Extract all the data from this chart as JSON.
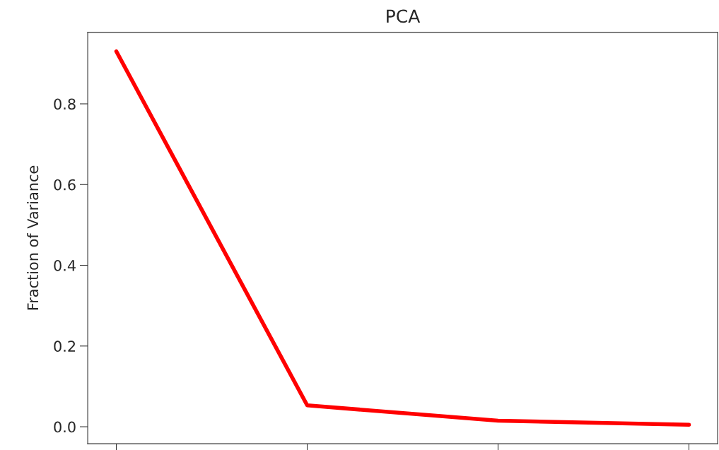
{
  "chart_data": {
    "type": "line",
    "title": "PCA",
    "ylabel": "Fraction of Variance",
    "categories": [
      null,
      null,
      null,
      null
    ],
    "series": [
      {
        "color": "#ff0000",
        "values": [
          0.93,
          0.053,
          0.015,
          0.005
        ]
      }
    ],
    "ylim": [
      -0.042,
      0.977
    ],
    "yticks": [
      {
        "value": 0,
        "label": "0.0"
      },
      0.2,
      0.4,
      0.6,
      0.8
    ],
    "tick_labels": "y",
    "grid": false,
    "legend": false,
    "marker": "none",
    "line_style": "solid"
  }
}
